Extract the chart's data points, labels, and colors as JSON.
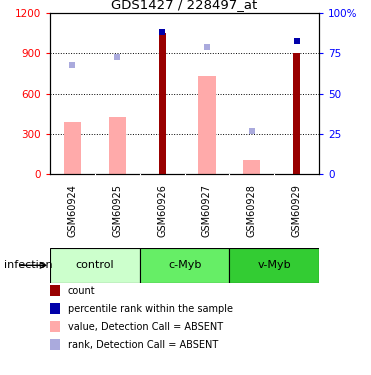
{
  "title": "GDS1427 / 228497_at",
  "samples": [
    "GSM60924",
    "GSM60925",
    "GSM60926",
    "GSM60927",
    "GSM60928",
    "GSM60929"
  ],
  "groups": [
    {
      "name": "control",
      "indices": [
        0,
        1
      ],
      "color": "#ccffcc"
    },
    {
      "name": "c-Myb",
      "indices": [
        2,
        3
      ],
      "color": "#66ee66"
    },
    {
      "name": "v-Myb",
      "indices": [
        4,
        5
      ],
      "color": "#33cc33"
    }
  ],
  "count_bars": [
    null,
    null,
    1050,
    null,
    null,
    900
  ],
  "count_color": "#990000",
  "pink_bars": [
    390,
    430,
    null,
    730,
    110,
    null
  ],
  "pink_color": "#ffaaaa",
  "light_blue_sq": [
    68,
    73,
    null,
    79,
    27,
    null
  ],
  "light_blue_color": "#aaaadd",
  "dark_blue_sq": [
    null,
    null,
    88,
    null,
    null,
    83
  ],
  "dark_blue_color": "#0000aa",
  "ylim_left": [
    0,
    1200
  ],
  "ylim_right": [
    0,
    100
  ],
  "yticks_left": [
    0,
    300,
    600,
    900,
    1200
  ],
  "yticks_right": [
    0,
    25,
    50,
    75,
    100
  ],
  "ytick_labels_right": [
    "0",
    "25",
    "50",
    "75",
    "100%"
  ],
  "infection_label": "infection",
  "legend_labels": [
    "count",
    "percentile rank within the sample",
    "value, Detection Call = ABSENT",
    "rank, Detection Call = ABSENT"
  ],
  "legend_colors": [
    "#990000",
    "#0000aa",
    "#ffaaaa",
    "#aaaadd"
  ]
}
